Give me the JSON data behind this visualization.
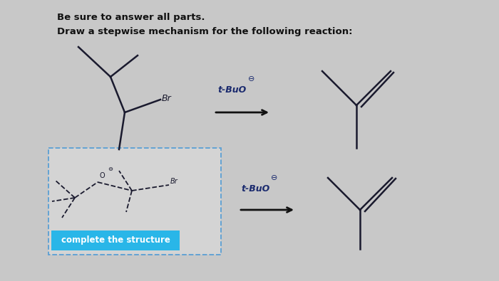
{
  "bg_color": "#c8c8c8",
  "title1": "Be sure to answer all parts.",
  "title2": "Draw a stepwise mechanism for the following reaction:",
  "complete_label": "complete the structure",
  "complete_bg": "#29b6e8",
  "complete_text_color": "white",
  "mol_color": "#1a1a2e",
  "dashed_box_color": "#5a9fd4",
  "dashed_box_fill": "#d4d4d4",
  "text_color": "#111111",
  "tbuo_color": "#1a2a6e",
  "arrow_color": "#111111"
}
